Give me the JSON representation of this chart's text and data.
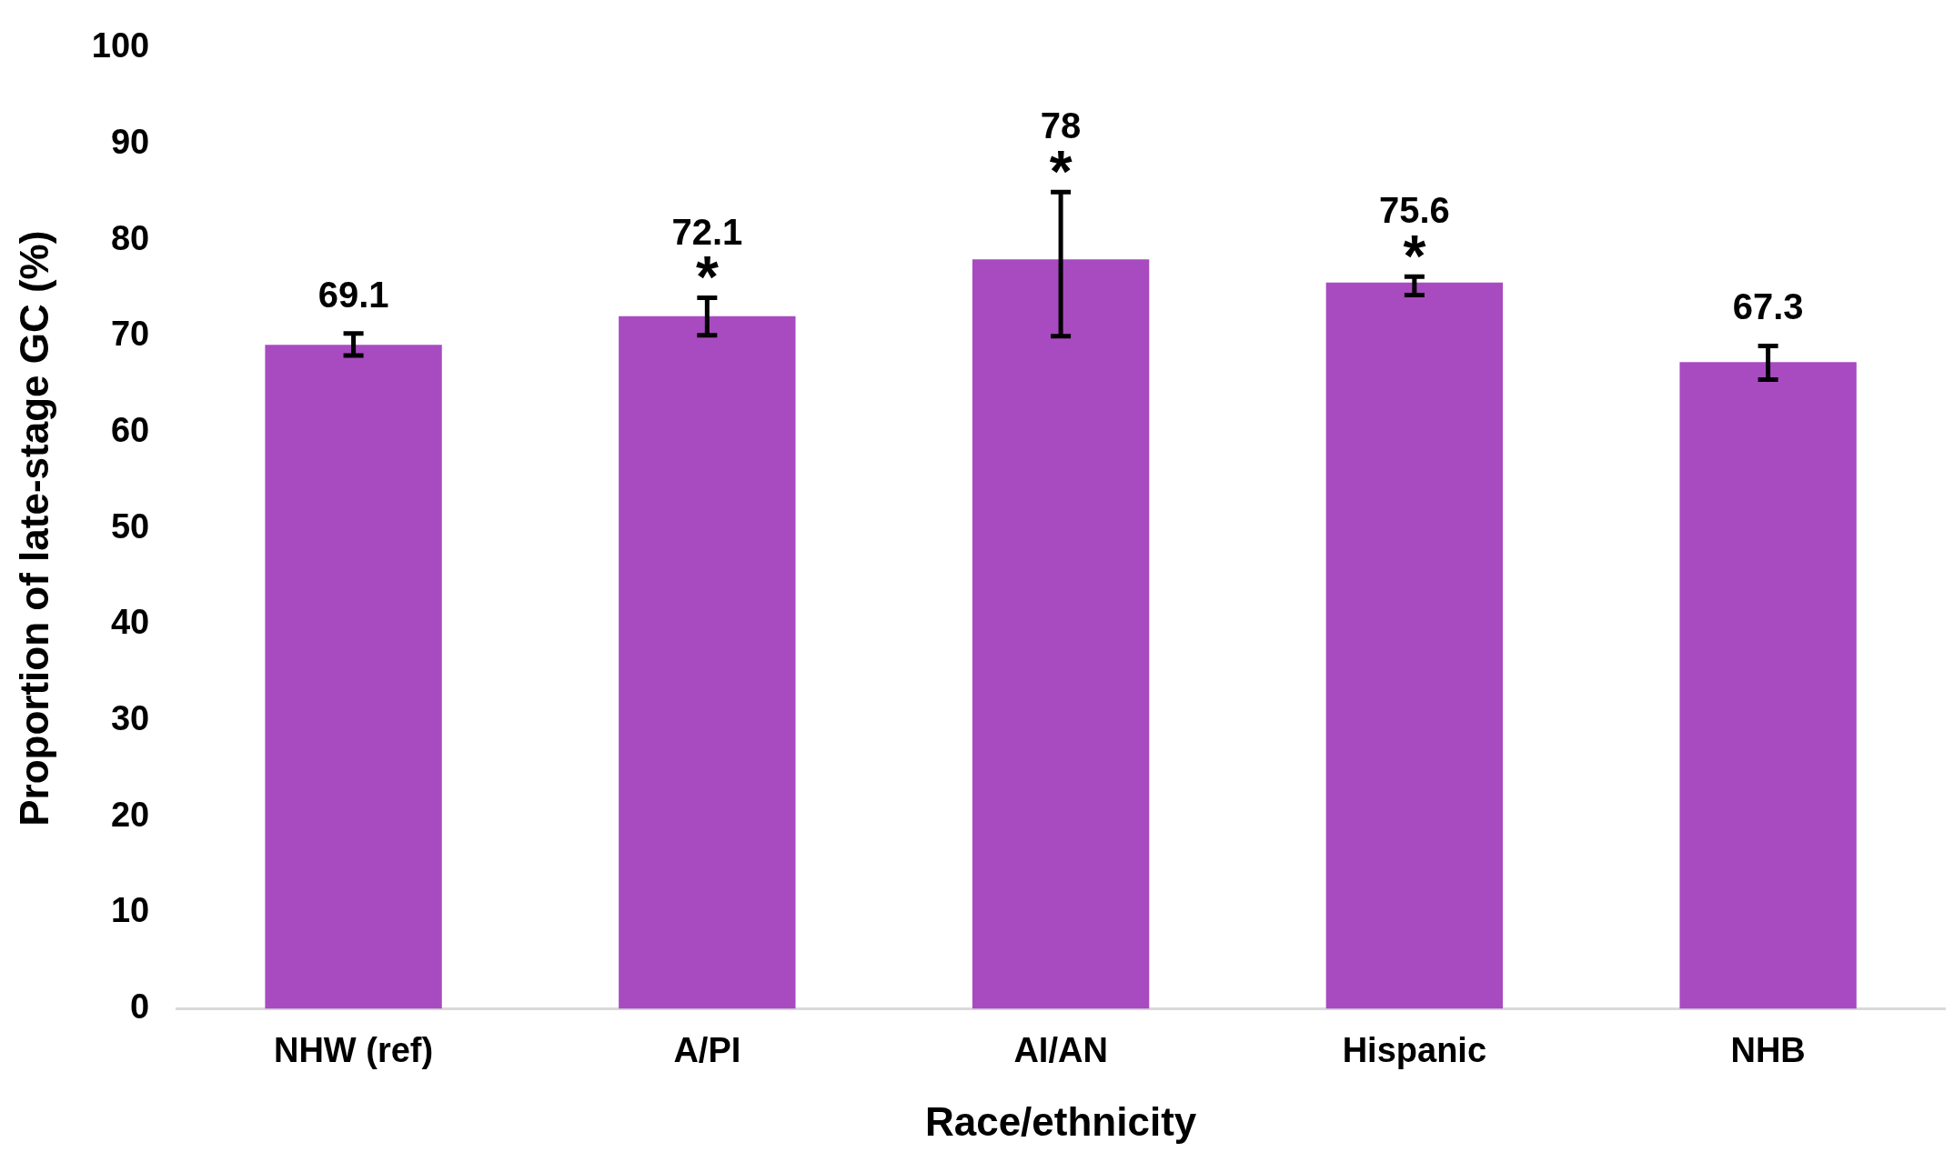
{
  "chart_data": {
    "type": "bar",
    "xlabel": "Race/ethnicity",
    "ylabel": "Proportion of late-stage GC (%)",
    "categories": [
      "NHW (ref)",
      "A/PI",
      "AI/AN",
      "Hispanic",
      "NHB"
    ],
    "values": [
      69.1,
      72.1,
      78,
      75.6,
      67.3
    ],
    "color": "#a84bc1",
    "errors": [
      [
        68.0,
        70.3
      ],
      [
        70.1,
        74.0
      ],
      [
        70,
        85
      ],
      [
        74.3,
        76.2
      ],
      [
        65.5,
        69.0
      ]
    ],
    "data_labels": true,
    "ylim": [
      0,
      100
    ],
    "yticks": [
      0,
      10,
      20,
      30,
      40,
      50,
      60,
      70,
      80,
      90,
      100
    ],
    "grid": false,
    "legend": false,
    "annotations": [
      {
        "text": "*",
        "x": "A/PI",
        "y": 72.1
      },
      {
        "text": "*",
        "x": "AI/AN",
        "y": 78
      },
      {
        "text": "*",
        "x": "Hispanic",
        "y": 75.6
      }
    ]
  }
}
